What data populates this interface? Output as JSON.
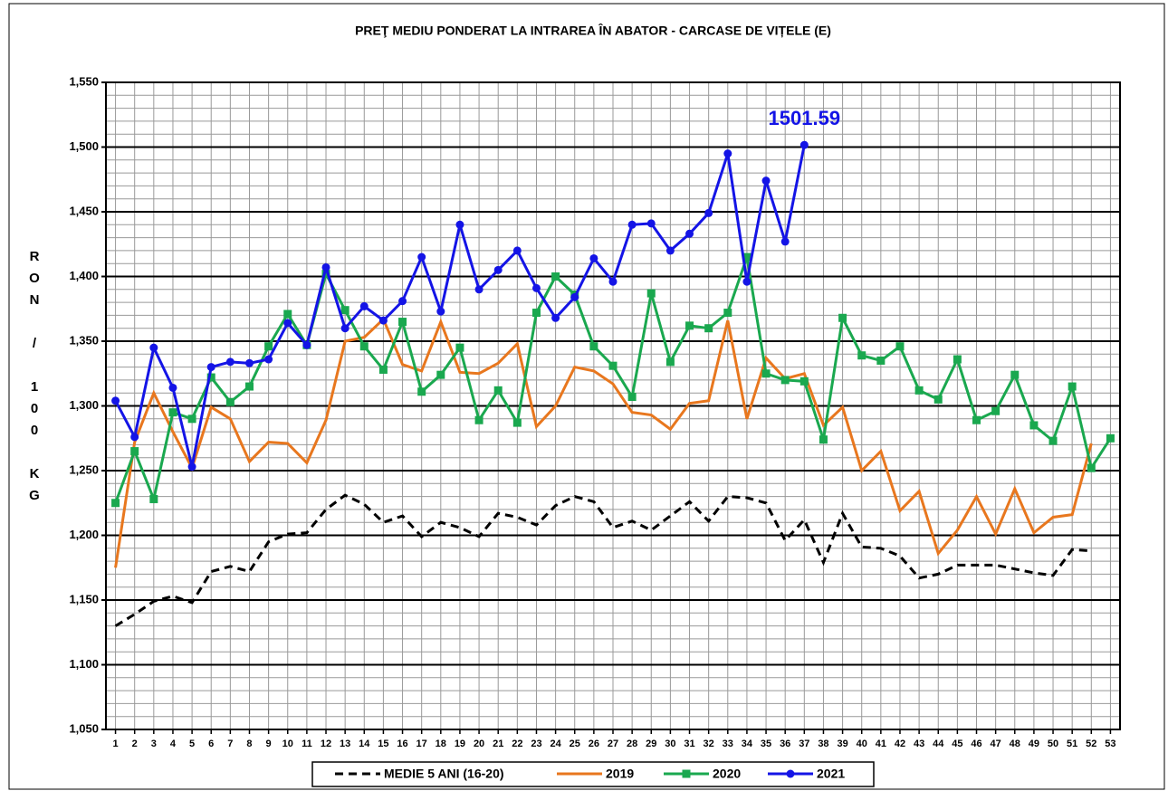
{
  "chart_data": {
    "type": "line",
    "title": "PREŢ MEDIU PONDERAT LA INTRAREA ÎN ABATOR - CARCASE DE VIȚELE (E)",
    "ylabel": "RON / 100 KG",
    "categories": [
      "1",
      "2",
      "3",
      "4",
      "5",
      "6",
      "7",
      "8",
      "9",
      "10",
      "11",
      "12",
      "13",
      "14",
      "15",
      "16",
      "17",
      "18",
      "19",
      "20",
      "21",
      "22",
      "23",
      "24",
      "25",
      "26",
      "27",
      "28",
      "29",
      "30",
      "31",
      "32",
      "33",
      "34",
      "35",
      "36",
      "37",
      "38",
      "39",
      "40",
      "41",
      "42",
      "43",
      "44",
      "45",
      "46",
      "47",
      "48",
      "49",
      "50",
      "51",
      "52",
      "53"
    ],
    "ylim": [
      1050,
      1550
    ],
    "yticks": [
      {
        "value": 1050,
        "label": "1,050"
      },
      {
        "value": 1100,
        "label": "1,100"
      },
      {
        "value": 1150,
        "label": "1,150"
      },
      {
        "value": 1200,
        "label": "1,200"
      },
      {
        "value": 1250,
        "label": "1,250"
      },
      {
        "value": 1300,
        "label": "1,300"
      },
      {
        "value": 1350,
        "label": "1,350"
      },
      {
        "value": 1400,
        "label": "1,400"
      },
      {
        "value": 1450,
        "label": "1,450"
      },
      {
        "value": 1500,
        "label": "1,500"
      },
      {
        "value": 1550,
        "label": "1,550"
      }
    ],
    "grid": true,
    "legend": "bottom",
    "series": [
      {
        "name": "MEDIE 5 ANI (16-20)",
        "color": "#000000",
        "dash": true,
        "marker": null,
        "values": [
          1130,
          1139,
          1149,
          1153,
          1148,
          1172,
          1176,
          1172,
          1195,
          1201,
          1202,
          1220,
          1231,
          1224,
          1210,
          1215,
          1199,
          1210,
          1206,
          1199,
          1217,
          1214,
          1208,
          1223,
          1230,
          1226,
          1206,
          1211,
          1204,
          1215,
          1226,
          1211,
          1230,
          1229,
          1225,
          1196,
          1212,
          1179,
          1217,
          1191,
          1190,
          1184,
          1167,
          1170,
          1177,
          1177,
          1177,
          1174,
          1171,
          1169,
          1189,
          1188,
          null
        ]
      },
      {
        "name": "2019",
        "color": "#e8771e",
        "dash": false,
        "marker": null,
        "values": [
          1175,
          1272,
          1310,
          1280,
          1252,
          1299,
          1290,
          1257,
          1272,
          1271,
          1256,
          1289,
          1350,
          1353,
          1367,
          1332,
          1327,
          1365,
          1326,
          1325,
          1333,
          1348,
          1284,
          1300,
          1330,
          1327,
          1317,
          1295,
          1293,
          1282,
          1302,
          1304,
          1366,
          1290,
          1337,
          1321,
          1325,
          1285,
          1299,
          1250,
          1265,
          1219,
          1234,
          1186,
          1204,
          1230,
          1201,
          1236,
          1202,
          1214,
          1216,
          1271,
          null
        ]
      },
      {
        "name": "2020",
        "color": "#1aa84f",
        "dash": false,
        "marker": "square",
        "values": [
          1225,
          1265,
          1228,
          1295,
          1290,
          1322,
          1303,
          1315,
          1346,
          1371,
          1347,
          1402,
          1374,
          1346,
          1328,
          1365,
          1311,
          1324,
          1345,
          1289,
          1312,
          1287,
          1372,
          1400,
          1386,
          1346,
          1331,
          1307,
          1387,
          1334,
          1362,
          1360,
          1372,
          1415,
          1325,
          1320,
          1319,
          1274,
          1368,
          1339,
          1335,
          1346,
          1312,
          1305,
          1336,
          1289,
          1296,
          1324,
          1285,
          1273,
          1315,
          1252,
          1275
        ]
      },
      {
        "name": "2021",
        "color": "#1414e6",
        "dash": false,
        "marker": "circle",
        "values": [
          1304,
          1276,
          1345,
          1314,
          1253,
          1330,
          1334,
          1333,
          1336,
          1364,
          1347,
          1407,
          1360,
          1377,
          1366,
          1381,
          1415,
          1373,
          1440,
          1390,
          1405,
          1420,
          1391,
          1368,
          1384,
          1414,
          1396,
          1440,
          1441,
          1420,
          1433,
          1449,
          1495,
          1396,
          1474,
          1427,
          1501.59,
          null,
          null,
          null,
          null,
          null,
          null,
          null,
          null,
          null,
          null,
          null,
          null,
          null,
          null,
          null,
          null
        ]
      }
    ],
    "annotations": [
      {
        "text": "1501.59",
        "series": 3,
        "index": 36,
        "color": "#1414e6"
      }
    ]
  }
}
